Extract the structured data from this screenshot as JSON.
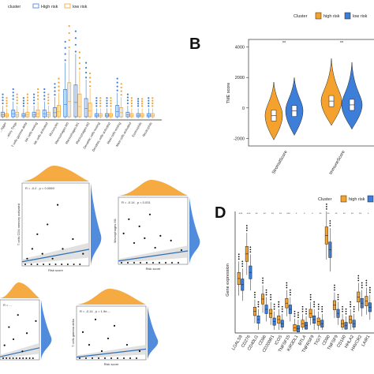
{
  "colors": {
    "high": "#3d7ed8",
    "low": "#f4a22d",
    "fit": "#2f6fb5",
    "band": "#d9d9d9"
  },
  "panelA": {
    "legend_title": "cluster",
    "legend_items": [
      "High risk",
      "low risk"
    ],
    "categories": [
      "...rigger",
      "...atory Tregs",
      "T cells gamma delta",
      "NK cells resting",
      "NK cells activated",
      "Monocytes",
      "Macrophages M0",
      "Macrophages M1",
      "Macrophages M2",
      "Dendritic cells resting",
      "Dendritic cells activated",
      "Mast cells resting",
      "Mast cells activated",
      "Eosinophils",
      "Neutrophils"
    ],
    "sig": [
      "***",
      "*",
      "",
      "",
      "",
      "",
      "",
      "**",
      "**",
      "",
      "",
      "",
      "",
      "",
      ""
    ]
  },
  "panelB": {
    "letter": "B",
    "legend_title": "Cluster",
    "legend_items": [
      "high risk",
      "low risk"
    ],
    "ylabel": "TME score",
    "yticks": [
      "4000",
      "2000",
      "0",
      "-2000"
    ],
    "categories": [
      "StromalScore",
      "ImmuneScore"
    ],
    "sig": [
      "**",
      "**"
    ]
  },
  "panelC": {
    "annotations": [
      "R = -0.2 , p = 0.0069",
      "R = -0.14 , p = 0.031",
      "R = ...",
      "R = -0.14 , p = 1.9e-..."
    ],
    "ylabels": [
      "T cells CD4 memory activated",
      "Macrophages M1",
      "",
      "T cells gamma delta"
    ],
    "xlabels": [
      "Risk score",
      "Risk score",
      "",
      "Risk score"
    ]
  },
  "panelD": {
    "letter": "D",
    "legend_title": "Cluster",
    "legend_items": [
      "high risk",
      "low risk"
    ],
    "ylabel": "Gene expression",
    "genes": [
      "LGALS9",
      "CD276",
      "CD40LG",
      "CD86",
      "CD200R1",
      "ICOS",
      "TNFSF15",
      "KIR3DL1",
      "BTLA",
      "TNFRSF9",
      "TIGIT",
      "CD80",
      "TNFSF9",
      "CD160",
      "HHLA2",
      "HAVCR2",
      "LAIR1"
    ],
    "sig": [
      "***",
      "***",
      "**",
      "**",
      "**",
      "**",
      "***",
      "*",
      "*",
      "*",
      "**",
      "**",
      "**",
      "**",
      "**",
      "**",
      "*"
    ]
  },
  "chart_data": [
    {
      "panel": "A",
      "type": "box",
      "categories": [
        "...rigger",
        "...atory Tregs",
        "T cells gamma delta",
        "NK cells resting",
        "NK cells activated",
        "Monocytes",
        "Macrophages M0",
        "Macrophages M1",
        "Macrophages M2",
        "Dendritic cells resting",
        "Dendritic cells activated",
        "Mast cells resting",
        "Mast cells activated",
        "Eosinophils",
        "Neutrophils"
      ],
      "series": [
        {
          "name": "High risk",
          "median": [
            0.02,
            0.03,
            0.01,
            0.02,
            0.03,
            0.04,
            0.12,
            0.14,
            0.08,
            0.01,
            0.01,
            0.05,
            0.02,
            0.0,
            0.01
          ]
        },
        {
          "name": "low risk",
          "median": [
            0.01,
            0.02,
            0.02,
            0.03,
            0.02,
            0.05,
            0.15,
            0.1,
            0.06,
            0.01,
            0.01,
            0.04,
            0.01,
            0.0,
            0.01
          ]
        }
      ]
    },
    {
      "panel": "B",
      "type": "violin",
      "categories": [
        "StromalScore",
        "ImmuneScore"
      ],
      "ylabel": "TME score",
      "ylim": [
        -2500,
        4500
      ],
      "series": [
        {
          "name": "high risk",
          "median": [
            -500,
            450
          ]
        },
        {
          "name": "low risk",
          "median": [
            -200,
            200
          ]
        }
      ]
    },
    {
      "panel": "C",
      "type": "scatter",
      "plots": [
        {
          "xlabel": "Risk score",
          "ylabel": "T cells CD4 memory activated",
          "points": [
            [
              0.5,
              0.01
            ],
            [
              1,
              0.03
            ],
            [
              1.5,
              0.06
            ],
            [
              2,
              0.02
            ],
            [
              2.5,
              0.08
            ],
            [
              3,
              0.01
            ],
            [
              3.5,
              0.12
            ],
            [
              4,
              0.03
            ],
            [
              5,
              0.05
            ],
            [
              6,
              0.02
            ]
          ]
        },
        {
          "xlabel": "Risk score",
          "ylabel": "Macrophages M1",
          "points": [
            [
              0.5,
              0.12
            ],
            [
              1,
              0.18
            ],
            [
              1.5,
              0.08
            ],
            [
              2,
              0.15
            ],
            [
              2.5,
              0.1
            ],
            [
              3,
              0.2
            ],
            [
              3.5,
              0.06
            ],
            [
              4,
              0.11
            ],
            [
              5,
              0.09
            ],
            [
              6,
              0.05
            ]
          ]
        },
        {
          "xlabel": "",
          "ylabel": "",
          "points": [
            [
              0.5,
              0.02
            ],
            [
              1,
              0.05
            ],
            [
              1.5,
              0.03
            ],
            [
              2,
              0.07
            ],
            [
              2.5,
              0.01
            ],
            [
              3,
              0.04
            ],
            [
              4,
              0.06
            ]
          ]
        },
        {
          "xlabel": "Risk score",
          "ylabel": "T cells gamma delta",
          "points": [
            [
              0.5,
              0.04
            ],
            [
              1,
              0.02
            ],
            [
              1.5,
              0.06
            ],
            [
              2,
              0.01
            ],
            [
              2.5,
              0.03
            ],
            [
              3,
              0.05
            ],
            [
              4,
              0.02
            ],
            [
              5,
              0.01
            ]
          ]
        }
      ]
    },
    {
      "panel": "D",
      "type": "box",
      "categories": [
        "LGALS9",
        "CD276",
        "CD40LG",
        "CD86",
        "CD200R1",
        "ICOS",
        "TNFSF15",
        "KIR3DL1",
        "BTLA",
        "TNFRSF9",
        "TIGIT",
        "CD80",
        "TNFSF9",
        "CD160",
        "HHLA2",
        "HAVCR2",
        "LAIR1"
      ],
      "ylabel": "Gene expression",
      "ylim": [
        0,
        6
      ],
      "series": [
        {
          "name": "high risk",
          "median": [
            2.5,
            3.7,
            0.9,
            1.5,
            0.8,
            0.5,
            1.3,
            0.1,
            0.3,
            0.8,
            0.4,
            4.6,
            1.2,
            0.3,
            0.5,
            1.6,
            1.4
          ]
        },
        {
          "name": "low risk",
          "median": [
            2.2,
            2.8,
            0.5,
            1.0,
            0.4,
            0.3,
            1.0,
            0.05,
            0.2,
            0.5,
            0.3,
            3.9,
            0.8,
            0.2,
            0.3,
            1.3,
            1.1
          ]
        }
      ]
    }
  ]
}
